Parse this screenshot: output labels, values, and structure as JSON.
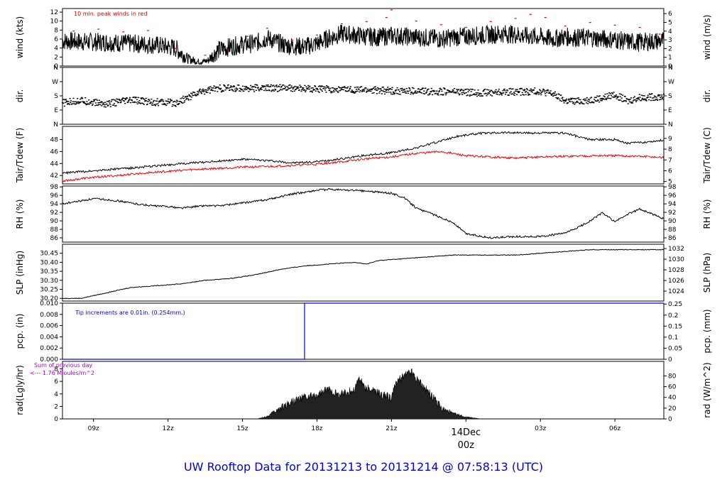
{
  "title": "UW Rooftop Data for 20131213  to  20131214 @ 07:58:13  (UTC)",
  "colors": {
    "main": "#000000",
    "peak": "#dd0000",
    "dew": "#ee0000",
    "precip": "#0000ff",
    "note_blue": "#0000dd",
    "note_purple": "#aa00cc",
    "footer": "#0000dd"
  },
  "time_axis": {
    "range_hours": [
      7.75,
      31.97
    ],
    "ticks": [
      {
        "h": 9,
        "label": "09z"
      },
      {
        "h": 12,
        "label": "12z"
      },
      {
        "h": 15,
        "label": "15z"
      },
      {
        "h": 18,
        "label": "18z"
      },
      {
        "h": 21,
        "label": "21z"
      },
      {
        "h": 27,
        "label": "03z"
      },
      {
        "h": 30,
        "label": "06z"
      }
    ],
    "day_marker": {
      "h": 24,
      "date": "14Dec",
      "time": "00z"
    }
  },
  "chart_data": [
    {
      "type": "line",
      "id": "wind",
      "ylabel_left": "wind (kts)",
      "ylabel_right": "wind (m/s)",
      "ylim": [
        0,
        12.8
      ],
      "left_ticks": [
        "0",
        "2",
        "4",
        "6",
        "8",
        "10",
        "12"
      ],
      "right_ticks": [
        "0",
        "1",
        "2",
        "3",
        "4",
        "5",
        "6"
      ],
      "right_ticks_at": [
        0,
        1.944,
        3.888,
        5.832,
        7.776,
        9.72,
        11.664
      ],
      "annotation": "10 min. peak winds in red",
      "series": [
        {
          "x": [
            7.75,
            8.5,
            9.5,
            10.5,
            11.5,
            12.3,
            12.8,
            13.3,
            13.6,
            14.0,
            14.5,
            15.0,
            15.5,
            16.0,
            16.7,
            17.5,
            18.0,
            18.5,
            19.0,
            19.5,
            20.0,
            20.5,
            21.0,
            21.5,
            22.0,
            22.5,
            23.0,
            23.5,
            24.0,
            24.5,
            25.0,
            25.5,
            26.0,
            26.5,
            27.0,
            27.5,
            28.0,
            28.5,
            29.0,
            29.5,
            30.0,
            30.5,
            31.0,
            31.97
          ],
          "values": [
            5.6,
            5.4,
            5.3,
            5.0,
            4.7,
            4.0,
            1.6,
            0.9,
            1.2,
            3.5,
            4.3,
            4.8,
            5.0,
            6.2,
            4.6,
            4.3,
            5.0,
            6.3,
            7.2,
            6.9,
            6.6,
            6.4,
            6.8,
            6.6,
            6.4,
            6.3,
            6.0,
            6.4,
            6.6,
            6.8,
            7.0,
            7.2,
            7.0,
            6.6,
            6.5,
            6.0,
            6.5,
            6.3,
            6.3,
            6.0,
            5.9,
            5.4,
            5.3,
            5.6
          ]
        },
        {
          "name": "peak",
          "x": [
            8.2,
            9.2,
            10.2,
            11.2,
            12.3,
            13.5,
            14.4,
            15.2,
            16.0,
            17.0,
            18.0,
            19.0,
            20.0,
            20.8,
            21.0,
            22.0,
            23.0,
            24.0,
            25.0,
            26.0,
            26.6,
            27.2,
            28.0,
            29.0,
            30.0,
            31.0,
            31.8
          ],
          "values": [
            7.8,
            8.2,
            7.6,
            7.9,
            3.9,
            2.4,
            3.6,
            6.6,
            8.4,
            5.8,
            6.9,
            9.4,
            9.9,
            10.8,
            12.5,
            10.0,
            9.2,
            8.6,
            9.9,
            10.6,
            11.5,
            10.8,
            8.9,
            9.7,
            9.1,
            8.6,
            7.1
          ]
        }
      ]
    },
    {
      "type": "scatter",
      "id": "dir",
      "ylabel_left": "dir.",
      "ylabel_right": "dir.",
      "ylim": [
        0,
        360
      ],
      "ticks": [
        "N",
        "E",
        "S",
        "W",
        "N"
      ],
      "ticks_deg": [
        0,
        90,
        180,
        270,
        360
      ],
      "series": [
        {
          "x": [
            7.75,
            8.5,
            9.5,
            10.5,
            11.5,
            12.3,
            12.8,
            13.2,
            13.6,
            14.0,
            14.5,
            15.5,
            16.5,
            17.5,
            18.5,
            19.5,
            20.5,
            21.5,
            22.5,
            23.5,
            24.5,
            25.5,
            26.5,
            27.0,
            27.5,
            28.0,
            28.5,
            29.0,
            29.5,
            30.0,
            30.5,
            31.0,
            31.97
          ],
          "values": [
            135,
            150,
            128,
            152,
            140,
            135,
            168,
            200,
            218,
            226,
            228,
            229,
            230,
            224,
            222,
            219,
            215,
            210,
            208,
            207,
            198,
            205,
            206,
            210,
            192,
            148,
            145,
            155,
            165,
            190,
            145,
            170,
            175
          ]
        }
      ]
    },
    {
      "type": "line",
      "id": "temp",
      "ylabel_left": "Tair/Tdew (F)",
      "ylabel_right": "Tair/Tdew (C)",
      "ylim": [
        40.6,
        50.2
      ],
      "left_ticks": [
        "42",
        "44",
        "46",
        "48"
      ],
      "right_ticks": [
        "5",
        "6",
        "7",
        "8",
        "9"
      ],
      "right_ticks_at": [
        41.0,
        42.8,
        44.6,
        46.4,
        48.2
      ],
      "series": [
        {
          "name": "Tair",
          "x": [
            7.75,
            9.0,
            10.0,
            11.0,
            12.0,
            13.0,
            14.0,
            15.0,
            16.0,
            17.0,
            18.0,
            19.0,
            20.0,
            21.0,
            22.0,
            23.0,
            23.7,
            24.5,
            25.5,
            26.5,
            27.5,
            28.0,
            28.5,
            29.0,
            30.0,
            30.5,
            31.0,
            31.97
          ],
          "values": [
            42.4,
            42.8,
            43.1,
            43.4,
            43.8,
            44.1,
            44.4,
            44.7,
            44.5,
            44.1,
            44.3,
            44.8,
            45.4,
            45.8,
            46.6,
            47.8,
            48.6,
            49.0,
            49.2,
            49.1,
            49.1,
            49.1,
            48.5,
            48.0,
            48.0,
            47.4,
            47.5,
            47.9
          ]
        },
        {
          "name": "Tdew",
          "x": [
            7.75,
            9.0,
            10.0,
            11.0,
            12.0,
            13.0,
            14.0,
            15.0,
            16.0,
            17.0,
            18.0,
            19.0,
            20.0,
            21.0,
            22.0,
            23.0,
            24.0,
            25.0,
            26.0,
            27.0,
            28.0,
            29.0,
            30.0,
            31.0,
            31.97
          ],
          "values": [
            41.1,
            41.7,
            42.0,
            42.4,
            42.7,
            43.0,
            43.2,
            43.4,
            43.5,
            43.7,
            43.9,
            44.3,
            44.8,
            45.1,
            45.7,
            46.0,
            45.3,
            45.1,
            44.9,
            45.1,
            45.2,
            45.3,
            45.3,
            45.2,
            45.0
          ]
        }
      ]
    },
    {
      "type": "line",
      "id": "rh",
      "ylabel_left": "RH (%)",
      "ylabel_right": "RH (%)",
      "ylim": [
        85,
        98.2
      ],
      "ticks": [
        "86",
        "88",
        "90",
        "92",
        "94",
        "96",
        "98"
      ],
      "series": [
        {
          "x": [
            7.75,
            8.5,
            9.0,
            9.5,
            10.0,
            10.5,
            11.0,
            11.5,
            12.0,
            12.5,
            13.0,
            13.5,
            14.0,
            15.0,
            16.0,
            17.0,
            18.0,
            18.5,
            19.0,
            20.0,
            21.0,
            21.5,
            22.0,
            23.0,
            23.5,
            24.0,
            25.0,
            26.0,
            27.0,
            28.0,
            28.5,
            29.0,
            29.5,
            30.0,
            30.5,
            31.0,
            31.97
          ],
          "values": [
            94.0,
            94.7,
            95.2,
            95.0,
            94.7,
            94.2,
            93.8,
            93.5,
            93.4,
            93.0,
            93.3,
            93.6,
            93.5,
            94.2,
            95.0,
            96.3,
            97.2,
            97.4,
            97.3,
            97.0,
            96.5,
            95.5,
            93.0,
            90.8,
            89.5,
            87.0,
            86.0,
            86.3,
            86.3,
            87.1,
            88.4,
            90.0,
            91.9,
            89.8,
            91.5,
            92.8,
            90.5
          ]
        }
      ]
    },
    {
      "type": "line",
      "id": "slp",
      "ylabel_left": "SLP (inHg)",
      "ylabel_right": "SLP (hPa)",
      "ylim": [
        30.185,
        30.5
      ],
      "left_ticks": [
        "30.20",
        "30.25",
        "30.30",
        "30.35",
        "30.40",
        "30.45"
      ],
      "right_ticks": [
        "1024",
        "1026",
        "1028",
        "1030",
        "1032"
      ],
      "right_ticks_at": [
        30.24,
        30.299,
        30.358,
        30.417,
        30.476
      ],
      "series": [
        {
          "x": [
            7.75,
            8.5,
            9.5,
            10.5,
            11.5,
            12.5,
            13.5,
            14.5,
            15.5,
            16.5,
            17.5,
            18.5,
            19.5,
            20.0,
            20.5,
            21.5,
            22.5,
            23.5,
            24.0,
            25.0,
            26.0,
            27.0,
            28.0,
            29.0,
            30.0,
            31.0,
            31.97
          ],
          "values": [
            30.2,
            30.2,
            30.23,
            30.26,
            30.27,
            30.28,
            30.3,
            30.31,
            30.33,
            30.36,
            30.38,
            30.39,
            30.4,
            30.39,
            30.41,
            30.42,
            30.43,
            30.44,
            30.44,
            30.44,
            30.44,
            30.45,
            30.46,
            30.47,
            30.47,
            30.47,
            30.47
          ]
        }
      ]
    },
    {
      "type": "line",
      "id": "pcp",
      "ylabel_left": "pcp. (in)",
      "ylabel_right": "pcp. (mm)",
      "ylim": [
        0,
        0.01
      ],
      "left_ticks": [
        "0.000",
        "0.002",
        "0.004",
        "0.006",
        "0.008",
        "0.010"
      ],
      "right_ticks": [
        "0",
        "0.05",
        "0.1",
        "0.15",
        "0.2",
        "0.25"
      ],
      "right_ticks_at": [
        0,
        0.001969,
        0.003937,
        0.005906,
        0.007874,
        0.009843
      ],
      "annotation": "Tip increments are 0.01in. (0.254mm.)",
      "series": [
        {
          "x": [
            7.75,
            17.5,
            17.5,
            31.97
          ],
          "values": [
            0,
            0,
            0.01,
            0.01
          ]
        }
      ]
    },
    {
      "type": "area",
      "id": "rad",
      "ylabel_left": "rad(Lgly/hr)",
      "ylabel_right": "rad (W/m^2)",
      "ylim": [
        0,
        9.2
      ],
      "left_ticks": [
        "0",
        "2",
        "4",
        "6",
        "8"
      ],
      "right_ticks": [
        "0",
        "20",
        "40",
        "60",
        "80"
      ],
      "right_ticks_at": [
        0,
        1.72,
        3.44,
        5.16,
        6.88
      ],
      "annotation_line1": "Sum of previous day",
      "annotation_line2": "<--- 1.76 MJoules/m^2",
      "series": [
        {
          "x": [
            15.6,
            16.0,
            16.5,
            17.0,
            17.5,
            18.0,
            18.5,
            18.8,
            19.0,
            19.5,
            19.7,
            19.9,
            20.2,
            20.5,
            21.0,
            21.2,
            21.5,
            21.8,
            22.0,
            22.5,
            23.0,
            23.5,
            24.0,
            24.6
          ],
          "values": [
            0,
            0.4,
            1.6,
            2.8,
            3.4,
            3.7,
            4.8,
            3.9,
            4.0,
            4.6,
            6.6,
            5.1,
            4.6,
            4.0,
            3.4,
            5.8,
            6.9,
            7.6,
            6.5,
            4.3,
            1.8,
            0.8,
            0.3,
            0
          ]
        }
      ]
    }
  ]
}
